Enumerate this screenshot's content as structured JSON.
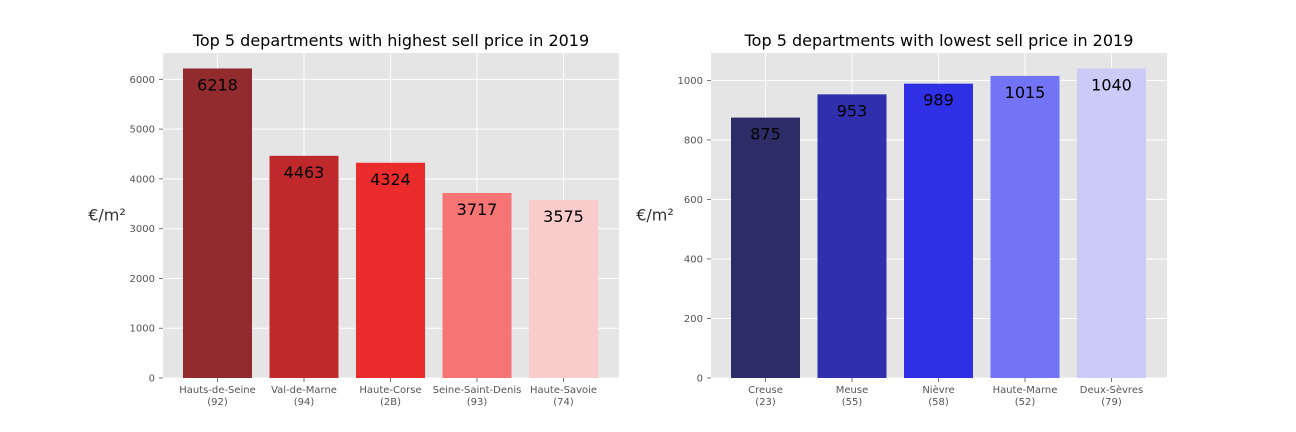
{
  "chart_data": [
    {
      "type": "bar",
      "title": "Top 5 departments with highest sell price in 2019",
      "ylabel": "€/m²",
      "xlabel": "",
      "categories": [
        {
          "name": "Hauts-de-Seine",
          "code": "(92)"
        },
        {
          "name": "Val-de-Marne",
          "code": "(94)"
        },
        {
          "name": "Haute-Corse",
          "code": "(2B)"
        },
        {
          "name": "Seine-Saint-Denis",
          "code": "(93)"
        },
        {
          "name": "Haute-Savoie",
          "code": "(74)"
        }
      ],
      "values": [
        6218,
        4463,
        4324,
        3717,
        3575
      ],
      "value_labels": [
        "6218",
        "4463",
        "4324",
        "3717",
        "3575"
      ],
      "colors": [
        "#922b2e",
        "#c0292b",
        "#ec2c2c",
        "#f77474",
        "#facbcb"
      ],
      "yticks": [
        "0",
        "1000",
        "2000",
        "3000",
        "4000",
        "5000",
        "6000"
      ],
      "ytick_values": [
        0,
        1000,
        2000,
        3000,
        4000,
        5000,
        6000
      ],
      "ylim": [
        0,
        6529
      ],
      "grid": true
    },
    {
      "type": "bar",
      "title": "Top 5 departments with lowest sell price in 2019",
      "ylabel": "€/m²",
      "xlabel": "",
      "categories": [
        {
          "name": "Creuse",
          "code": "(23)"
        },
        {
          "name": "Meuse",
          "code": "(55)"
        },
        {
          "name": "Nièvre",
          "code": "(58)"
        },
        {
          "name": "Haute-Marne",
          "code": "(52)"
        },
        {
          "name": "Deux-Sèvres",
          "code": "(79)"
        }
      ],
      "values": [
        875,
        953,
        989,
        1015,
        1040
      ],
      "value_labels": [
        "875",
        "953",
        "989",
        "1015",
        "1040"
      ],
      "colors": [
        "#2c2d67",
        "#3030ae",
        "#2f2fe6",
        "#7373f6",
        "#cbcbf8"
      ],
      "yticks": [
        "0",
        "200",
        "400",
        "600",
        "800",
        "1000"
      ],
      "ytick_values": [
        0,
        200,
        400,
        600,
        800,
        1000
      ],
      "ylim": [
        0,
        1092
      ],
      "grid": true
    }
  ]
}
